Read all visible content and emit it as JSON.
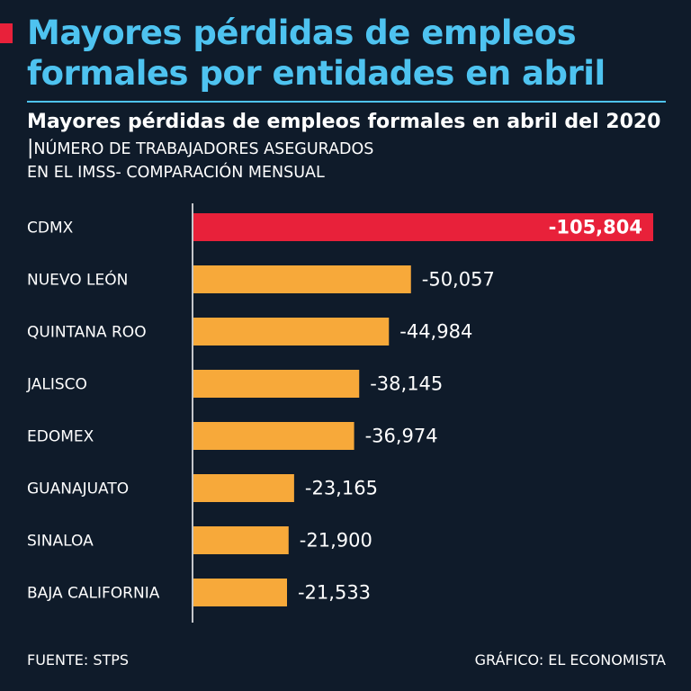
{
  "header": {
    "title": "Mayores pérdidas de empleos formales por entidades en abril",
    "subtitle_bold": "Mayores pérdidas de empleos formales en abril del 2020",
    "subtitle_sep": "|",
    "subtitle_light_1": "NÚMERO DE TRABAJADORES ASEGURADOS",
    "subtitle_light_2": "EN EL IMSS- COMPARACIÓN MENSUAL"
  },
  "chart_data": {
    "type": "bar",
    "orientation": "horizontal",
    "categories": [
      "CDMX",
      "NUEVO LEÓN",
      "QUINTANA ROO",
      "JALISCO",
      "EDOMEX",
      "GUANAJUATO",
      "SINALOA",
      "BAJA CALIFORNIA"
    ],
    "values": [
      -105804,
      -50057,
      -44984,
      -38145,
      -36974,
      -23165,
      -21900,
      -21533
    ],
    "value_labels": [
      "-105,804",
      "-50,057",
      "-44,984",
      "-38,145",
      "-36,974",
      "-23,165",
      "-21,900",
      "-21,533"
    ],
    "highlight_index": 0,
    "colors": {
      "bar": "#f7a93a",
      "highlight": "#e8213a",
      "axis": "#ffffff"
    }
  },
  "footer": {
    "source": "FUENTE: STPS",
    "credit": "GRÁFICO: EL ECONOMISTA"
  },
  "colors": {
    "background": "#0f1b2a",
    "title": "#4ec3f0",
    "accent": "#e8213a"
  }
}
